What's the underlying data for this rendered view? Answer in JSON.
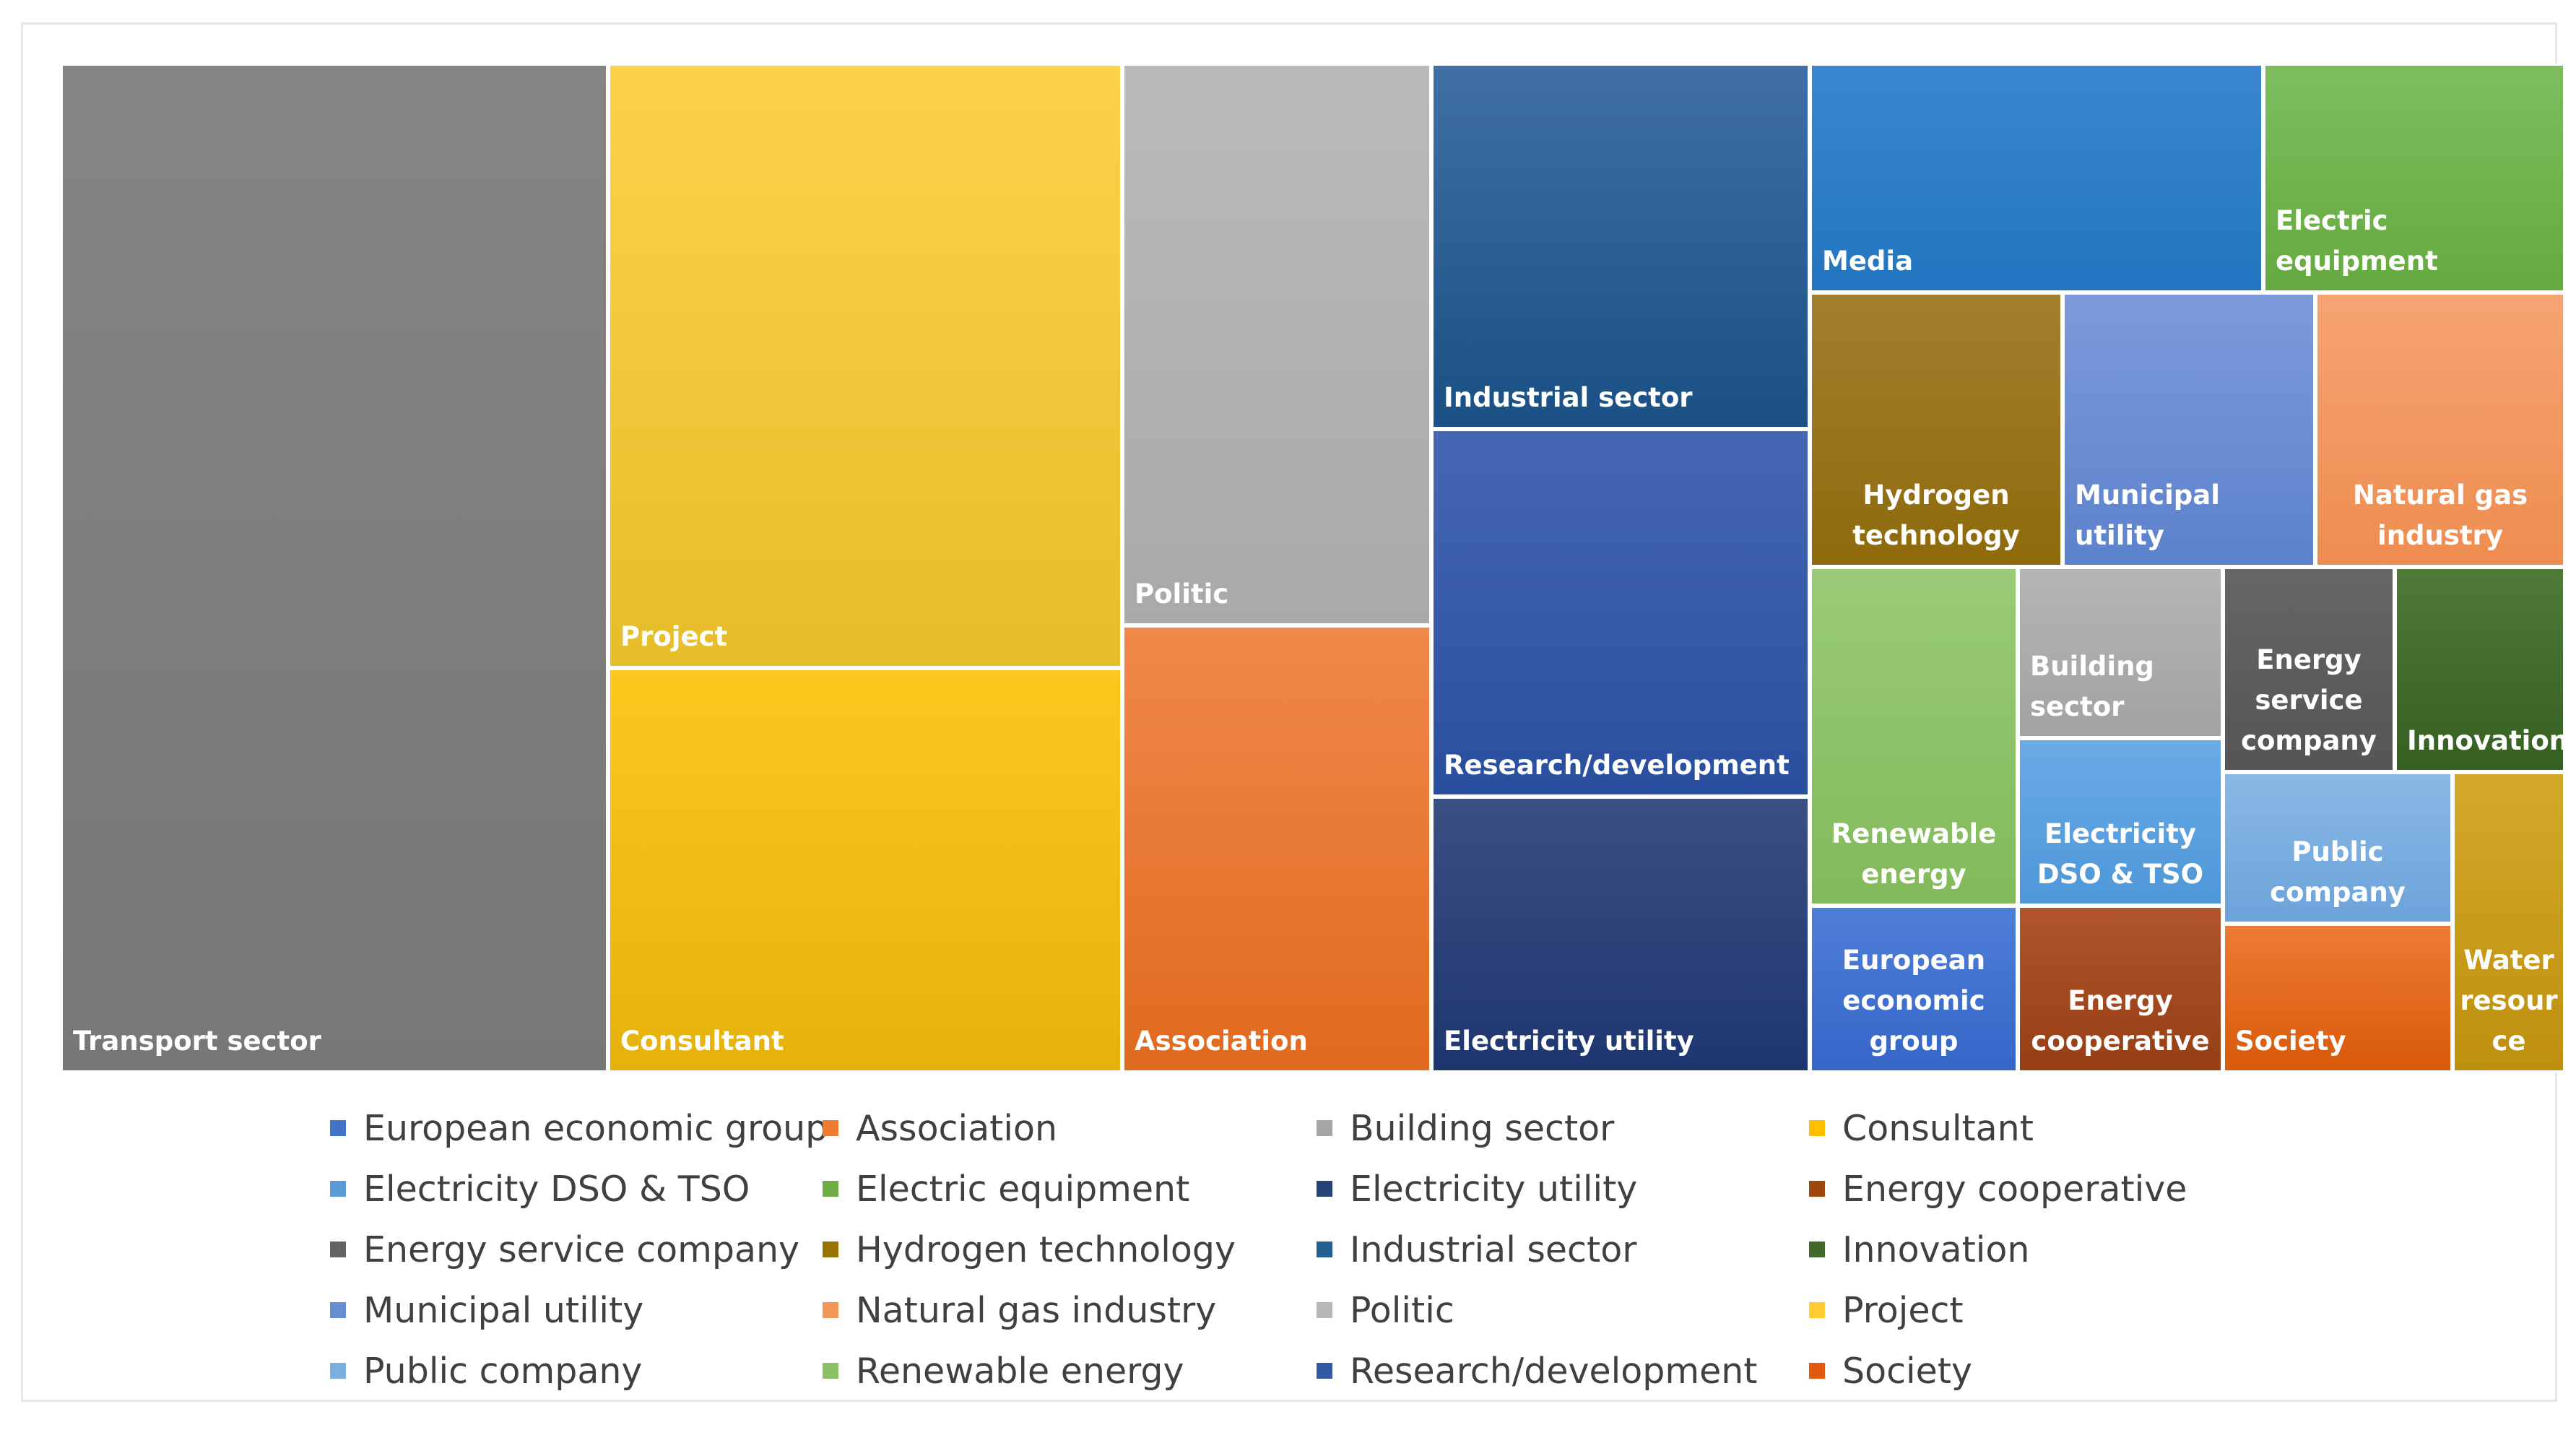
{
  "chart_data": {
    "type": "treemap",
    "title": "",
    "tiles": [
      {
        "name": "Transport sector",
        "color": "#858585",
        "shade": "#777777"
      },
      {
        "name": "Project",
        "color": "#FDD24A",
        "shade": "#E6BD2A"
      },
      {
        "name": "Consultant",
        "color": "#FDC71E",
        "shade": "#E5B20C"
      },
      {
        "name": "Politic",
        "color": "#BABABA",
        "shade": "#A9A9A9"
      },
      {
        "name": "Association",
        "color": "#F0884A",
        "shade": "#E06A1E"
      },
      {
        "name": "Industrial sector",
        "color": "#3F6FA5",
        "shade": "#1A5085"
      },
      {
        "name": "Research/development",
        "color": "#4567B3",
        "shade": "#2A4E9E"
      },
      {
        "name": "Electricity utility",
        "color": "#3A4F82",
        "shade": "#1E3670"
      },
      {
        "name": "Media",
        "color": "#3A86D0",
        "shade": "#2275C0"
      },
      {
        "name": "Electric equipment",
        "color": "#7DBD5E",
        "shade": "#65AA40"
      },
      {
        "name": "Hydrogen technology",
        "color": "#A27F2E",
        "shade": "#8E6A0C"
      },
      {
        "name": "Municipal utility",
        "color": "#7D9ADB",
        "shade": "#5C82CC"
      },
      {
        "name": "Natural gas industry",
        "color": "#F6A373",
        "shade": "#EE8D50"
      },
      {
        "name": "Renewable energy",
        "color": "#9ACB78",
        "shade": "#82BA5A"
      },
      {
        "name": "Building sector",
        "color": "#B5B5B5",
        "shade": "#A2A2A2"
      },
      {
        "name": "Energy service company",
        "color": "#666666",
        "shade": "#555555"
      },
      {
        "name": "Innovation",
        "color": "#4F7A3A",
        "shade": "#365F22"
      },
      {
        "name": "Electricity DSO & TSO",
        "color": "#6AAAE6",
        "shade": "#4E97D8"
      },
      {
        "name": "Public company",
        "color": "#8AB8E6",
        "shade": "#6CA3DA"
      },
      {
        "name": "European economic group",
        "color": "#4F7ED8",
        "shade": "#3566C8"
      },
      {
        "name": "Energy cooperative",
        "color": "#B0552E",
        "shade": "#963E14"
      },
      {
        "name": "Society",
        "color": "#EE7A33",
        "shade": "#D85A0A"
      },
      {
        "name": "Water resource",
        "color": "#D4A82A",
        "shade": "#BE900E"
      }
    ],
    "tile_labels": {
      "transport": "Transport sector",
      "project": "Project",
      "consultant": "Consultant",
      "politic": "Politic",
      "association": "Association",
      "industrial": "Industrial sector",
      "research": "Research/development",
      "electricity_utility": "Electricity utility",
      "media": "Media",
      "electric_equipment": "Electric equipment",
      "hydrogen": "Hydrogen\ntechnology",
      "municipal": "Municipal utility",
      "natural_gas": "Natural gas\nindustry",
      "renewable": "Renewable\nenergy",
      "building": "Building\nsector",
      "esco": "Energy\nservice\ncompany",
      "innovation": "Innovation",
      "dso_tso": "Electricity\nDSO & TSO",
      "public_company": "Public\ncompany",
      "european": "European\neconomic\ngroup",
      "cooperative": "Energy\ncooperative",
      "society": "Society",
      "water": "Water\nresour\nce"
    },
    "legend": [
      {
        "label": "European economic group",
        "color": "#4472C4"
      },
      {
        "label": "Association",
        "color": "#ED7D31"
      },
      {
        "label": "Building sector",
        "color": "#A5A5A5"
      },
      {
        "label": "Consultant",
        "color": "#FFC000"
      },
      {
        "label": "Electricity DSO & TSO",
        "color": "#5B9BD5"
      },
      {
        "label": "Electric equipment",
        "color": "#70AD47"
      },
      {
        "label": "Electricity utility",
        "color": "#264478"
      },
      {
        "label": "Energy cooperative",
        "color": "#9E480E"
      },
      {
        "label": "Energy service company",
        "color": "#636363"
      },
      {
        "label": "Hydrogen technology",
        "color": "#997300"
      },
      {
        "label": "Industrial sector",
        "color": "#255E91"
      },
      {
        "label": "Innovation",
        "color": "#43682B"
      },
      {
        "label": "Municipal utility",
        "color": "#698ED0"
      },
      {
        "label": "Natural gas industry",
        "color": "#F1975A"
      },
      {
        "label": "Politic",
        "color": "#B7B7B7"
      },
      {
        "label": "Project",
        "color": "#FFCD33"
      },
      {
        "label": "Public company",
        "color": "#7CAFDD"
      },
      {
        "label": "Renewable energy",
        "color": "#8CC168"
      },
      {
        "label": "Research/development",
        "color": "#335AA1"
      },
      {
        "label": "Society",
        "color": "#E35A0F"
      }
    ]
  }
}
